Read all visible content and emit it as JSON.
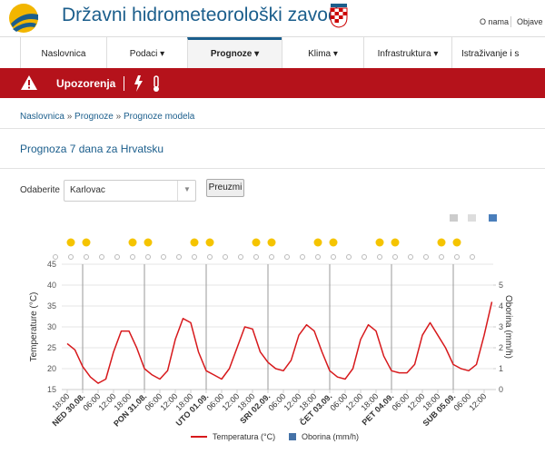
{
  "header": {
    "title": "Državni hidrometeorološki zavod",
    "links": [
      "O nama",
      "Objave"
    ]
  },
  "nav": [
    "Naslovnica",
    "Podaci",
    "Prognoze",
    "Klima",
    "Infrastruktura",
    "Istraživanje i s"
  ],
  "warning": {
    "label": "Upozorenja"
  },
  "breadcrumb": [
    "Naslovnica",
    "Prognoze",
    "Prognoze modela"
  ],
  "heading": "Prognoza 7 dana za Hrvatsku",
  "form": {
    "label": "Odaberite",
    "selected": "Karlovac",
    "button": "Preuzmi"
  },
  "chart_data": {
    "type": "line",
    "categories": [
      "18:00",
      null,
      "NED 30.08.",
      null,
      "06:00",
      null,
      "12:00",
      null,
      "18:00",
      null,
      "PON 31.08.",
      null,
      "06:00",
      null,
      "12:00",
      null,
      "18:00",
      null,
      "UTO 01.09.",
      null,
      "06:00",
      null,
      "12:00",
      null,
      "18:00",
      null,
      "SRI 02.09.",
      null,
      "06:00",
      null,
      "12:00",
      null,
      "18:00",
      null,
      "ČET 03.09.",
      null,
      "06:00",
      null,
      "12:00",
      null,
      "18:00",
      null,
      "PET 04.09.",
      null,
      "06:00",
      null,
      "12:00",
      null,
      "18:00",
      null,
      "SUB 05.09.",
      null,
      "06:00",
      null,
      "12:00",
      null
    ],
    "series": [
      {
        "name": "Temperatura (°C)",
        "color": "#d7191c",
        "values": [
          26,
          24.5,
          20.5,
          18,
          16.5,
          17.5,
          24,
          29,
          29,
          25,
          20,
          18.5,
          17.5,
          19.5,
          27,
          32,
          31,
          24,
          19.5,
          18.5,
          17.5,
          20,
          25,
          30,
          29.5,
          24,
          21.5,
          20,
          19.5,
          22,
          28,
          30.5,
          29,
          24,
          19.5,
          18,
          17.5,
          20,
          27,
          30.5,
          29,
          23,
          19.5,
          19,
          19,
          21,
          28,
          31,
          28,
          25,
          21,
          20,
          19.5,
          21,
          28,
          36
        ]
      },
      {
        "name": "Oborina (mm/h)",
        "color": "#4572a7",
        "axis": "y2",
        "values": [
          0,
          0,
          0,
          0,
          0,
          0,
          0,
          0,
          0,
          0,
          0,
          0,
          0,
          0,
          0,
          0,
          0,
          0,
          0,
          0,
          0,
          0,
          0,
          0,
          0,
          0,
          0,
          0,
          0,
          0,
          0,
          0,
          0,
          0,
          0,
          0,
          0,
          0,
          0,
          0,
          0,
          0,
          0,
          0,
          0,
          0,
          0,
          0,
          0,
          0,
          0,
          0,
          0,
          0,
          0,
          0
        ]
      }
    ],
    "y_label": "Temperature (°C)",
    "y2_label": "Oborina (mm/h)",
    "ylim": [
      15,
      45
    ],
    "yticks": [
      15,
      20,
      25,
      30,
      35,
      40,
      45
    ],
    "y2lim": [
      0,
      6
    ],
    "y2ticks": [
      0,
      1,
      2,
      3,
      4,
      5
    ],
    "grid": true
  }
}
